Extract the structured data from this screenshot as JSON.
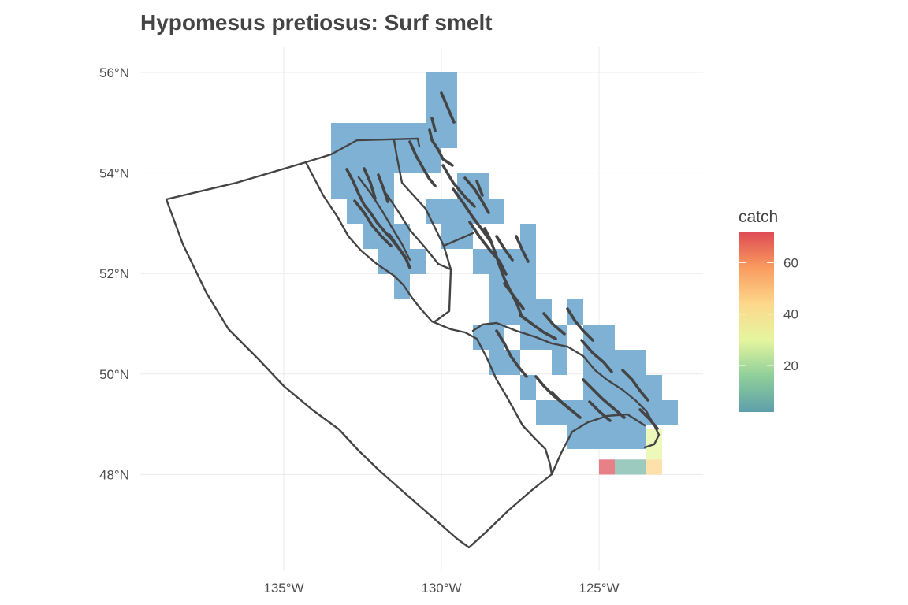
{
  "title": "Hypomesus pretiosus: Surf smelt",
  "map": {
    "x_ticks": [
      {
        "lon": -135,
        "label": "135°W"
      },
      {
        "lon": -130,
        "label": "130°W"
      },
      {
        "lon": -125,
        "label": "125°W"
      }
    ],
    "y_ticks": [
      {
        "lat": 56,
        "label": "56°N"
      },
      {
        "lat": 54,
        "label": "54°N"
      },
      {
        "lat": 52,
        "label": "52°N"
      },
      {
        "lat": 50,
        "label": "50°N"
      },
      {
        "lat": 48,
        "label": "48°N"
      }
    ],
    "colors": {
      "baseline_cell": "#7fb1d4",
      "coastline": "#444444",
      "grid": "#ebebeb"
    }
  },
  "legend": {
    "title": "catch",
    "range": [
      2,
      72
    ],
    "ticks": [
      {
        "value": 60,
        "label": "60"
      },
      {
        "value": 40,
        "label": "40"
      },
      {
        "value": 20,
        "label": "20"
      }
    ],
    "scale_colors": [
      "#5e9fab",
      "#8fcf9a",
      "#e5f59e",
      "#fdd78b",
      "#f99b5e",
      "#de4a55"
    ]
  },
  "chart_data": {
    "type": "heatmap",
    "title": "Hypomesus pretiosus: Surf smelt",
    "value_label": "catch",
    "x_range_lon": [
      -139.5,
      -121.7
    ],
    "y_range_lat": [
      46.2,
      56.5
    ],
    "cell_size_deg": {
      "lon": 0.5,
      "lat": 0.3
    },
    "colored_cells": [
      {
        "lon": -125.0,
        "lat": 48.0,
        "catch": 72
      },
      {
        "lon": -124.5,
        "lat": 48.0,
        "catch": 8
      },
      {
        "lon": -124.0,
        "lat": 48.0,
        "catch": 8
      },
      {
        "lon": -123.5,
        "lat": 48.0,
        "catch": 45
      },
      {
        "lon": -123.5,
        "lat": 48.3,
        "catch": 30
      },
      {
        "lon": -123.5,
        "lat": 48.6,
        "catch": 30
      }
    ]
  }
}
